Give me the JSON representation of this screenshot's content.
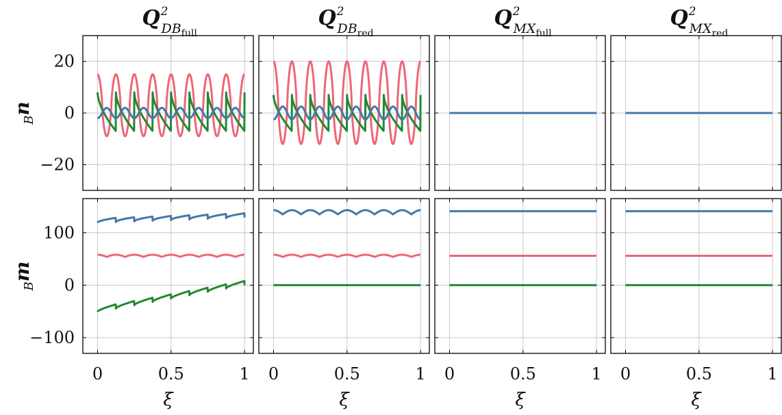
{
  "colors": {
    "blue": "#4477aa",
    "red": "#ee6677",
    "green": "#228833",
    "grid": "#c8c8c8",
    "frame": "#000000"
  },
  "columns": [
    {
      "title": "Q",
      "sup": "2",
      "sub_main": "DB",
      "sub_sub": "full"
    },
    {
      "title": "Q",
      "sup": "2",
      "sub_main": "DB",
      "sub_sub": "red"
    },
    {
      "title": "Q",
      "sup": "2",
      "sub_main": "MX",
      "sub_sub": "full"
    },
    {
      "title": "Q",
      "sup": "2",
      "sub_main": "MX",
      "sub_sub": "red"
    }
  ],
  "rows": [
    {
      "ylabel_prefix": "B",
      "ylabel_main": "n"
    },
    {
      "ylabel_prefix": "B",
      "ylabel_main": "m"
    }
  ],
  "xlabel": "ξ",
  "chart_data": [
    {
      "type": "line",
      "panel": "row1-col1",
      "xlim": [
        -0.1,
        1.06
      ],
      "ylim": [
        -30,
        30
      ],
      "xticks": [
        0,
        0.5,
        1
      ],
      "yticks": [
        -20,
        0,
        20
      ],
      "grid": true,
      "series": [
        {
          "color": "red",
          "shape": "spiky",
          "periods": 8,
          "x0": 0,
          "x1": 1,
          "peak": 15,
          "trough": -9
        },
        {
          "color": "green",
          "shape": "sawtooth",
          "periods": 8,
          "x0": 0,
          "x1": 1,
          "high": 8,
          "low": -7
        },
        {
          "color": "blue",
          "shape": "sine",
          "periods": 8,
          "x0": 0,
          "x1": 1,
          "amp": 2,
          "offset": 0
        }
      ]
    },
    {
      "type": "line",
      "panel": "row1-col2",
      "xlim": [
        -0.1,
        1.06
      ],
      "ylim": [
        -30,
        30
      ],
      "xticks": [
        0,
        0.5,
        1
      ],
      "yticks": [
        -20,
        0,
        20
      ],
      "grid": true,
      "series": [
        {
          "color": "red",
          "shape": "spiky",
          "periods": 8,
          "x0": 0,
          "x1": 1,
          "peak": 20,
          "trough": -12
        },
        {
          "color": "green",
          "shape": "sawtooth",
          "periods": 8,
          "x0": 0,
          "x1": 1,
          "high": 7,
          "low": -7
        },
        {
          "color": "blue",
          "shape": "sine",
          "periods": 8,
          "x0": 0,
          "x1": 1,
          "amp": 2.5,
          "offset": 0
        }
      ]
    },
    {
      "type": "line",
      "panel": "row1-col3",
      "xlim": [
        -0.1,
        1.06
      ],
      "ylim": [
        -30,
        30
      ],
      "xticks": [
        0,
        0.5,
        1
      ],
      "yticks": [
        -20,
        0,
        20
      ],
      "grid": true,
      "series": [
        {
          "color": "blue",
          "shape": "flat",
          "x0": 0,
          "x1": 1,
          "value": 0
        }
      ]
    },
    {
      "type": "line",
      "panel": "row1-col4",
      "xlim": [
        -0.1,
        1.06
      ],
      "ylim": [
        -30,
        30
      ],
      "xticks": [
        0,
        0.5,
        1
      ],
      "yticks": [
        -20,
        0,
        20
      ],
      "grid": true,
      "series": [
        {
          "color": "blue",
          "shape": "flat",
          "x0": 0,
          "x1": 1,
          "value": 0
        }
      ]
    },
    {
      "type": "line",
      "panel": "row2-col1",
      "xlim": [
        -0.1,
        1.06
      ],
      "ylim": [
        -130,
        165
      ],
      "xticks": [
        0,
        0.5,
        1
      ],
      "yticks": [
        -100,
        0,
        100
      ],
      "grid": true,
      "series": [
        {
          "color": "blue",
          "shape": "sawtooth-trend",
          "periods": 8,
          "x0": 0,
          "x1": 1,
          "start": 123,
          "end": 133,
          "jump": 8
        },
        {
          "color": "red",
          "shape": "scallop",
          "periods": 8,
          "x0": 0,
          "x1": 1,
          "base": 56,
          "amp": 4
        },
        {
          "color": "green",
          "shape": "sawtooth-trend",
          "periods": 8,
          "x0": 0,
          "x1": 1,
          "start": -47,
          "end": 4,
          "jump": 8
        }
      ]
    },
    {
      "type": "line",
      "panel": "row2-col2",
      "xlim": [
        -0.1,
        1.06
      ],
      "ylim": [
        -130,
        165
      ],
      "xticks": [
        0,
        0.5,
        1
      ],
      "yticks": [
        -100,
        0,
        100
      ],
      "grid": true,
      "series": [
        {
          "color": "blue",
          "shape": "scallop",
          "periods": 8,
          "x0": 0,
          "x1": 1,
          "base": 139,
          "amp": 8
        },
        {
          "color": "red",
          "shape": "scallop",
          "periods": 8,
          "x0": 0,
          "x1": 1,
          "base": 56,
          "amp": 4
        },
        {
          "color": "green",
          "shape": "flat",
          "x0": 0,
          "x1": 1,
          "value": 0
        }
      ]
    },
    {
      "type": "line",
      "panel": "row2-col3",
      "xlim": [
        -0.1,
        1.06
      ],
      "ylim": [
        -130,
        165
      ],
      "xticks": [
        0,
        0.5,
        1
      ],
      "yticks": [
        -100,
        0,
        100
      ],
      "grid": true,
      "series": [
        {
          "color": "blue",
          "shape": "flat",
          "x0": 0,
          "x1": 1,
          "value": 141
        },
        {
          "color": "red",
          "shape": "flat",
          "x0": 0,
          "x1": 1,
          "value": 56
        },
        {
          "color": "green",
          "shape": "flat",
          "x0": 0,
          "x1": 1,
          "value": 0
        }
      ]
    },
    {
      "type": "line",
      "panel": "row2-col4",
      "xlim": [
        -0.1,
        1.06
      ],
      "ylim": [
        -130,
        165
      ],
      "xticks": [
        0,
        0.5,
        1
      ],
      "yticks": [
        -100,
        0,
        100
      ],
      "grid": true,
      "series": [
        {
          "color": "blue",
          "shape": "flat",
          "x0": 0,
          "x1": 1,
          "value": 141
        },
        {
          "color": "red",
          "shape": "flat",
          "x0": 0,
          "x1": 1,
          "value": 56
        },
        {
          "color": "green",
          "shape": "flat",
          "x0": 0,
          "x1": 1,
          "value": 0
        }
      ]
    }
  ]
}
